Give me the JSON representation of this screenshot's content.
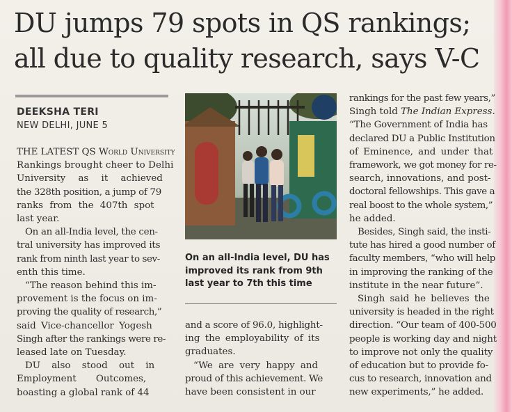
{
  "headline": {
    "line1": "DU jumps 79 spots in QS rankings;",
    "line2": "all due to quality research, says V-C"
  },
  "byline": "DEEKSHA TERI",
  "dateline": "NEW DELHI, JUNE 5",
  "photo_caption": {
    "line1": "On an all-India level, DU has",
    "line2": "improved its rank from 9th",
    "line3": "last year to 7th this time"
  },
  "column1": [
    "THE LATEST QS World University",
    "Rankings brought cheer to Delhi",
    "University as it achieved",
    "the 328th position, a jump of 79",
    "ranks from the 407th spot",
    "last year.",
    "On an all-India level, the cen-",
    "tral university has improved its",
    "rank from ninth last year to sev-",
    "enth this time.",
    "“The reason behind this im-",
    "provement is the focus on im-",
    "proving the quality of research,”",
    "said Vice-chancellor Yogesh",
    "Singh after the rankings were re-",
    "leased late on Tuesday.",
    "DU also stood out in",
    "Employment Outcomes,",
    "boasting a global rank of 44"
  ],
  "column2": [
    "and a score of 96.0, highlight-",
    "ing the employability of its",
    "graduates.",
    "“We are very happy and",
    "proud of this achievement. We",
    "have been consistent in our"
  ],
  "column3": [
    "rankings for the past few years,”",
    "Singh told The Indian Express.",
    "“The Government of India has",
    "declared DU a Public Institution",
    "of Eminence, and under that",
    "framework, we got money for re-",
    "search, innovations, and post-",
    "doctoral fellowships. This gave a",
    "real boost to the whole system,”",
    "he added.",
    "Besides, Singh said, the insti-",
    "tute has hired a good number of",
    "faculty members, “who will help",
    "in improving the ranking of the",
    "institute in the near future”.",
    "Singh said he believes the",
    "university is headed in the right",
    "direction. “Our team of 400-500",
    "people is working day and night",
    "to improve not only the quality",
    "of education but to provide fo-",
    "cus to research, innovation and",
    "new experiments,” he added."
  ]
}
